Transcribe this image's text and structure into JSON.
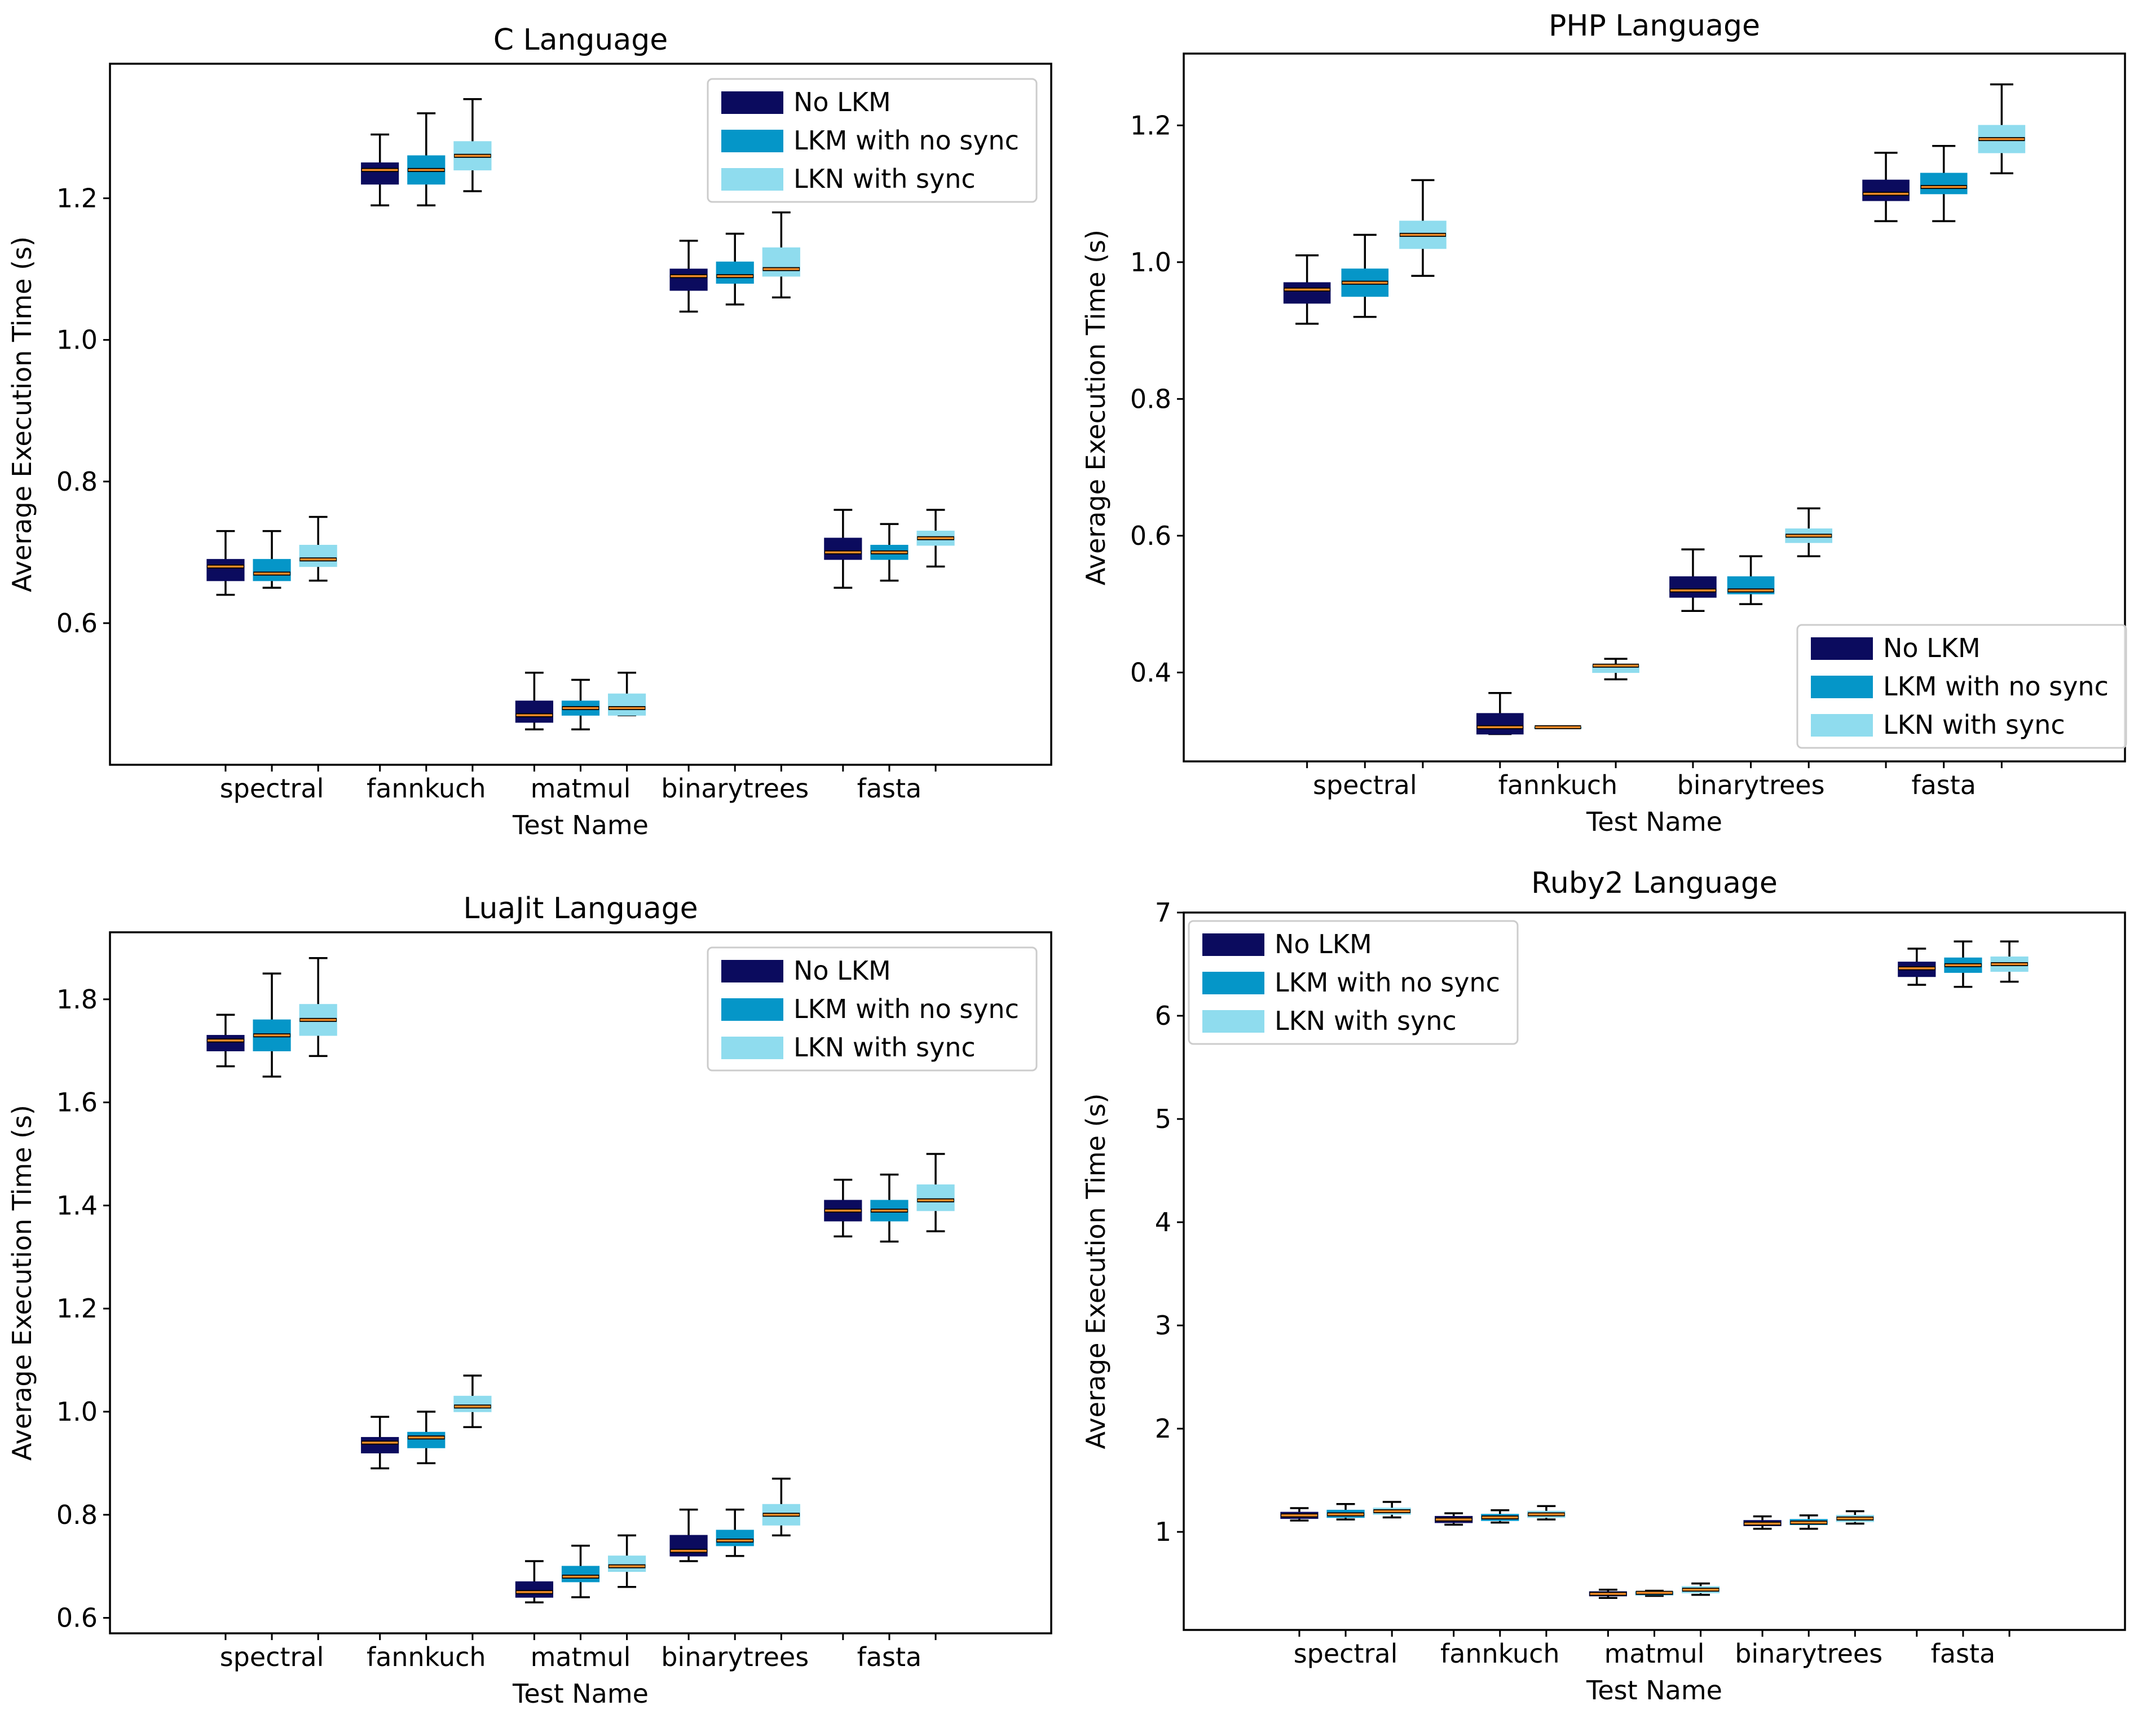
{
  "colors": {
    "no_lkm": "#0b0b5e",
    "lkm_no_sync": "#0596c8",
    "lkn_sync": "#8fdcee",
    "median": "#f28c28"
  },
  "chart_data": [
    {
      "type": "box",
      "title": "C Language",
      "xlabel": "Test Name",
      "ylabel": "Average Execution Time (s)",
      "ylim": [
        0.4,
        1.39
      ],
      "yticks": [
        0.6,
        0.8,
        1.0,
        1.2
      ],
      "ytick_labels": [
        "0.6",
        "0.8",
        "1.0",
        "1.2"
      ],
      "legend_position": "top-right",
      "categories": [
        "spectral",
        "fannkuch",
        "matmul",
        "binarytrees",
        "fasta"
      ],
      "series": [
        {
          "name": "No LKM",
          "boxes": [
            {
              "min": 0.64,
              "q1": 0.66,
              "median": 0.68,
              "q3": 0.69,
              "max": 0.73
            },
            {
              "min": 1.19,
              "q1": 1.22,
              "median": 1.24,
              "q3": 1.25,
              "max": 1.29
            },
            {
              "min": 0.45,
              "q1": 0.46,
              "median": 0.47,
              "q3": 0.49,
              "max": 0.53
            },
            {
              "min": 1.04,
              "q1": 1.07,
              "median": 1.09,
              "q3": 1.1,
              "max": 1.14
            },
            {
              "min": 0.65,
              "q1": 0.69,
              "median": 0.7,
              "q3": 0.72,
              "max": 0.76
            }
          ]
        },
        {
          "name": "LKM with no sync",
          "boxes": [
            {
              "min": 0.65,
              "q1": 0.66,
              "median": 0.67,
              "q3": 0.69,
              "max": 0.73
            },
            {
              "min": 1.19,
              "q1": 1.22,
              "median": 1.24,
              "q3": 1.26,
              "max": 1.32
            },
            {
              "min": 0.45,
              "q1": 0.47,
              "median": 0.48,
              "q3": 0.49,
              "max": 0.52
            },
            {
              "min": 1.05,
              "q1": 1.08,
              "median": 1.09,
              "q3": 1.11,
              "max": 1.15
            },
            {
              "min": 0.66,
              "q1": 0.69,
              "median": 0.7,
              "q3": 0.71,
              "max": 0.74
            }
          ]
        },
        {
          "name": "LKN with sync",
          "boxes": [
            {
              "min": 0.66,
              "q1": 0.68,
              "median": 0.69,
              "q3": 0.71,
              "max": 0.75
            },
            {
              "min": 1.21,
              "q1": 1.24,
              "median": 1.26,
              "q3": 1.28,
              "max": 1.34
            },
            {
              "min": 0.47,
              "q1": 0.47,
              "median": 0.48,
              "q3": 0.5,
              "max": 0.53
            },
            {
              "min": 1.06,
              "q1": 1.09,
              "median": 1.1,
              "q3": 1.13,
              "max": 1.18
            },
            {
              "min": 0.68,
              "q1": 0.71,
              "median": 0.72,
              "q3": 0.73,
              "max": 0.76
            }
          ]
        }
      ]
    },
    {
      "type": "box",
      "title": "PHP Language",
      "xlabel": "Test Name",
      "ylabel": "Average Execution Time (s)",
      "ylim": [
        0.27,
        1.305
      ],
      "yticks": [
        0.4,
        0.6,
        0.8,
        1.0,
        1.2
      ],
      "ytick_labels": [
        "0.4",
        "0.6",
        "0.8",
        "1.0",
        "1.2"
      ],
      "legend_position": "bottom-right",
      "categories": [
        "spectral",
        "fannkuch",
        "binarytrees",
        "fasta"
      ],
      "series": [
        {
          "name": "No LKM",
          "boxes": [
            {
              "min": 0.91,
              "q1": 0.94,
              "median": 0.96,
              "q3": 0.97,
              "max": 1.01
            },
            {
              "min": 0.31,
              "q1": 0.31,
              "median": 0.32,
              "q3": 0.34,
              "max": 0.37
            },
            {
              "min": 0.49,
              "q1": 0.51,
              "median": 0.52,
              "q3": 0.54,
              "max": 0.58
            },
            {
              "min": 1.06,
              "q1": 1.09,
              "median": 1.1,
              "q3": 1.12,
              "max": 1.16
            }
          ]
        },
        {
          "name": "LKM with no sync",
          "boxes": [
            {
              "min": 0.92,
              "q1": 0.95,
              "median": 0.97,
              "q3": 0.99,
              "max": 1.04
            },
            {
              "min": 0.32,
              "q1": 0.32,
              "median": 0.32,
              "q3": 0.32,
              "max": 0.32
            },
            {
              "min": 0.5,
              "q1": 0.515,
              "median": 0.52,
              "q3": 0.54,
              "max": 0.57
            },
            {
              "min": 1.06,
              "q1": 1.1,
              "median": 1.11,
              "q3": 1.13,
              "max": 1.17
            }
          ]
        },
        {
          "name": "LKN with sync",
          "boxes": [
            {
              "min": 0.98,
              "q1": 1.02,
              "median": 1.04,
              "q3": 1.06,
              "max": 1.12
            },
            {
              "min": 0.39,
              "q1": 0.4,
              "median": 0.41,
              "q3": 0.41,
              "max": 0.42
            },
            {
              "min": 0.57,
              "q1": 0.59,
              "median": 0.6,
              "q3": 0.61,
              "max": 0.64
            },
            {
              "min": 1.13,
              "q1": 1.16,
              "median": 1.18,
              "q3": 1.2,
              "max": 1.26
            }
          ]
        }
      ]
    },
    {
      "type": "box",
      "title": "LuaJit Language",
      "xlabel": "Test Name",
      "ylabel": "Average Execution Time (s)",
      "ylim": [
        0.57,
        1.93
      ],
      "yticks": [
        0.6,
        0.8,
        1.0,
        1.2,
        1.4,
        1.6,
        1.8
      ],
      "ytick_labels": [
        "0.6",
        "0.8",
        "1.0",
        "1.2",
        "1.4",
        "1.6",
        "1.8"
      ],
      "legend_position": "top-right",
      "categories": [
        "spectral",
        "fannkuch",
        "matmul",
        "binarytrees",
        "fasta"
      ],
      "series": [
        {
          "name": "No LKM",
          "boxes": [
            {
              "min": 1.67,
              "q1": 1.7,
              "median": 1.72,
              "q3": 1.73,
              "max": 1.77
            },
            {
              "min": 0.89,
              "q1": 0.92,
              "median": 0.94,
              "q3": 0.95,
              "max": 0.99
            },
            {
              "min": 0.63,
              "q1": 0.64,
              "median": 0.65,
              "q3": 0.67,
              "max": 0.71
            },
            {
              "min": 0.71,
              "q1": 0.72,
              "median": 0.73,
              "q3": 0.76,
              "max": 0.81
            },
            {
              "min": 1.34,
              "q1": 1.37,
              "median": 1.39,
              "q3": 1.41,
              "max": 1.45
            }
          ]
        },
        {
          "name": "LKM with no sync",
          "boxes": [
            {
              "min": 1.65,
              "q1": 1.7,
              "median": 1.73,
              "q3": 1.76,
              "max": 1.85
            },
            {
              "min": 0.9,
              "q1": 0.93,
              "median": 0.95,
              "q3": 0.96,
              "max": 1.0
            },
            {
              "min": 0.64,
              "q1": 0.67,
              "median": 0.68,
              "q3": 0.7,
              "max": 0.74
            },
            {
              "min": 0.72,
              "q1": 0.74,
              "median": 0.75,
              "q3": 0.77,
              "max": 0.81
            },
            {
              "min": 1.33,
              "q1": 1.37,
              "median": 1.39,
              "q3": 1.41,
              "max": 1.46
            }
          ]
        },
        {
          "name": "LKN with sync",
          "boxes": [
            {
              "min": 1.69,
              "q1": 1.73,
              "median": 1.76,
              "q3": 1.79,
              "max": 1.88
            },
            {
              "min": 0.97,
              "q1": 1.0,
              "median": 1.01,
              "q3": 1.03,
              "max": 1.07
            },
            {
              "min": 0.66,
              "q1": 0.69,
              "median": 0.7,
              "q3": 0.72,
              "max": 0.76
            },
            {
              "min": 0.76,
              "q1": 0.78,
              "median": 0.8,
              "q3": 0.82,
              "max": 0.87
            },
            {
              "min": 1.35,
              "q1": 1.39,
              "median": 1.41,
              "q3": 1.44,
              "max": 1.5
            }
          ]
        }
      ]
    },
    {
      "type": "box",
      "title": "Ruby2 Language",
      "xlabel": "Test Name",
      "ylabel": "Average Execution Time (s)",
      "ylim": [
        0.05,
        7.0
      ],
      "yticks": [
        1,
        2,
        3,
        4,
        5,
        6,
        7
      ],
      "ytick_labels": [
        "1",
        "2",
        "3",
        "4",
        "5",
        "6",
        "7"
      ],
      "legend_position": "top-left",
      "categories": [
        "spectral",
        "fannkuch",
        "matmul",
        "binarytrees",
        "fasta"
      ],
      "series": [
        {
          "name": "No LKM",
          "boxes": [
            {
              "min": 1.11,
              "q1": 1.13,
              "median": 1.16,
              "q3": 1.19,
              "max": 1.23
            },
            {
              "min": 1.07,
              "q1": 1.09,
              "median": 1.12,
              "q3": 1.15,
              "max": 1.18
            },
            {
              "min": 0.36,
              "q1": 0.38,
              "median": 0.4,
              "q3": 0.42,
              "max": 0.44
            },
            {
              "min": 1.03,
              "q1": 1.06,
              "median": 1.08,
              "q3": 1.11,
              "max": 1.15
            },
            {
              "min": 6.3,
              "q1": 6.38,
              "median": 6.46,
              "q3": 6.52,
              "max": 6.65
            }
          ]
        },
        {
          "name": "LKM with no sync",
          "boxes": [
            {
              "min": 1.12,
              "q1": 1.14,
              "median": 1.17,
              "q3": 1.21,
              "max": 1.27
            },
            {
              "min": 1.09,
              "q1": 1.11,
              "median": 1.14,
              "q3": 1.17,
              "max": 1.21
            },
            {
              "min": 0.38,
              "q1": 0.39,
              "median": 0.41,
              "q3": 0.42,
              "max": 0.43
            },
            {
              "min": 1.03,
              "q1": 1.07,
              "median": 1.09,
              "q3": 1.12,
              "max": 1.16
            },
            {
              "min": 6.28,
              "q1": 6.42,
              "median": 6.49,
              "q3": 6.56,
              "max": 6.72
            }
          ]
        },
        {
          "name": "LKN with sync",
          "boxes": [
            {
              "min": 1.14,
              "q1": 1.17,
              "median": 1.2,
              "q3": 1.23,
              "max": 1.29
            },
            {
              "min": 1.12,
              "q1": 1.14,
              "median": 1.17,
              "q3": 1.2,
              "max": 1.25
            },
            {
              "min": 0.39,
              "q1": 0.41,
              "median": 0.44,
              "q3": 0.47,
              "max": 0.5
            },
            {
              "min": 1.08,
              "q1": 1.1,
              "median": 1.13,
              "q3": 1.16,
              "max": 1.2
            },
            {
              "min": 6.33,
              "q1": 6.43,
              "median": 6.5,
              "q3": 6.57,
              "max": 6.72
            }
          ]
        }
      ]
    }
  ]
}
